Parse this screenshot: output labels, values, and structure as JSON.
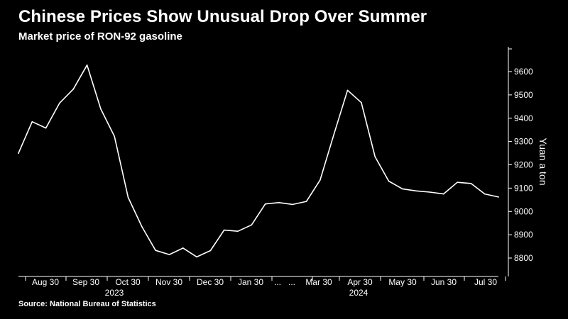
{
  "title": "Chinese Prices Show Unusual Drop Over Summer",
  "subtitle": "Market price of RON-92 gasoline",
  "source": "Source:  National Bureau of Statistics",
  "colors": {
    "background": "#000000",
    "line": "#ffffff",
    "text": "#ffffff"
  },
  "chart_data": {
    "type": "line",
    "title": "Chinese Prices Show Unusual Drop Over Summer",
    "subtitle": "Market price of RON-92 gasoline",
    "xlabel": "",
    "ylabel": "Yuan a ton",
    "ylim": [
      8800,
      9600
    ],
    "yticks": [
      8800,
      8900,
      9000,
      9100,
      9200,
      9300,
      9400,
      9500,
      9600
    ],
    "y_axis_position": "right",
    "grid": false,
    "x_tick_labels": [
      "Aug 30",
      "Sep 30",
      "Oct 30",
      "Nov 30",
      "Dec 30",
      "Jan 30",
      "...",
      "...",
      "Mar 30",
      "Apr 30",
      "May 30",
      "Jun 30",
      "Jul 30"
    ],
    "year_labels": [
      "2023",
      "2024"
    ],
    "series": [
      {
        "values": [
          9250,
          9385,
          9358,
          9465,
          9525,
          9628,
          9440,
          9322,
          9060,
          8935,
          8833,
          8815,
          8843,
          8805,
          8832,
          8920,
          8915,
          8942,
          9032,
          9038,
          9030,
          9043,
          9135,
          9330,
          9520,
          9467,
          9235,
          9130,
          9097,
          9088,
          9083,
          9075,
          9125,
          9120,
          9075,
          9062
        ]
      }
    ]
  }
}
